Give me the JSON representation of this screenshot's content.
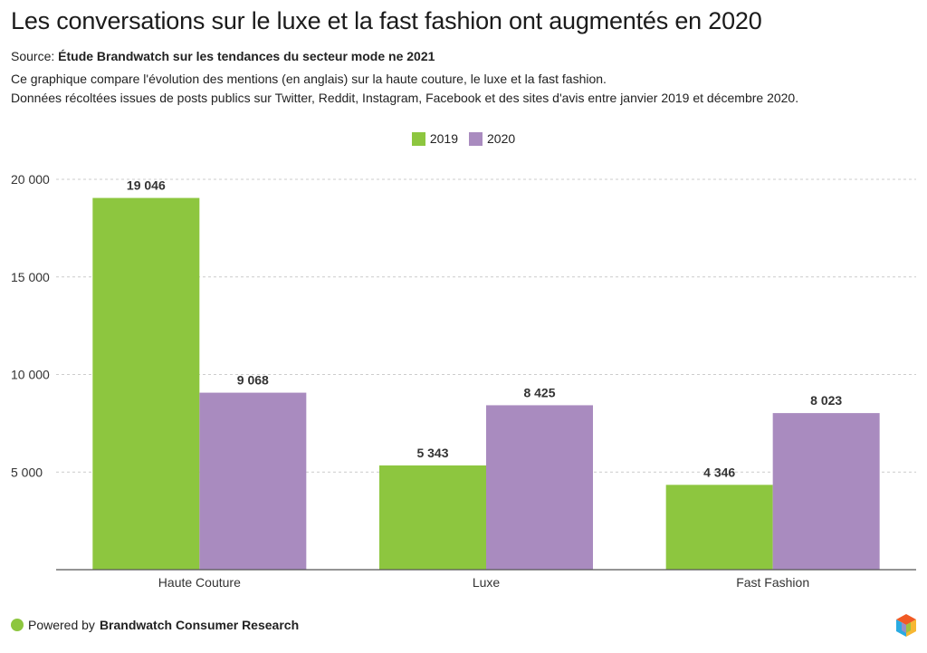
{
  "header": {
    "title": "Les conversations sur le luxe et la fast fashion ont augmentés en 2020",
    "source_prefix": "Source: ",
    "source_name": "Étude Brandwatch sur les tendances du secteur mode ne 2021",
    "description_line1": "Ce graphique compare l'évolution des mentions (en anglais) sur la haute couture, le luxe et la fast fashion.",
    "description_line2": "Données récoltées issues de posts publics sur Twitter, Reddit, Instagram, Facebook et des sites d'avis entre janvier 2019 et décembre 2020."
  },
  "footer": {
    "powered_prefix": "Powered by ",
    "powered_name": "Brandwatch Consumer Research"
  },
  "colors": {
    "series_2019": "#8dc63f",
    "series_2020": "#a98bbf",
    "gridline": "#cccccc",
    "axis": "#555555"
  },
  "chart_data": {
    "type": "bar",
    "categories": [
      "Haute Couture",
      "Luxe",
      "Fast Fashion"
    ],
    "series": [
      {
        "name": "2019",
        "values": [
          19046,
          5343,
          4346
        ],
        "labels": [
          "19 046",
          "5 343",
          "4 346"
        ]
      },
      {
        "name": "2020",
        "values": [
          9068,
          8425,
          8023
        ],
        "labels": [
          "9 068",
          "8 425",
          "8 023"
        ]
      }
    ],
    "yticks": [
      5000,
      10000,
      15000,
      20000
    ],
    "ytick_labels": [
      "5 000",
      "10 000",
      "15 000",
      "20 000"
    ],
    "ylim": [
      0,
      20000
    ],
    "legend_position": "top-center",
    "grid": true,
    "xlabel": "",
    "ylabel": ""
  }
}
